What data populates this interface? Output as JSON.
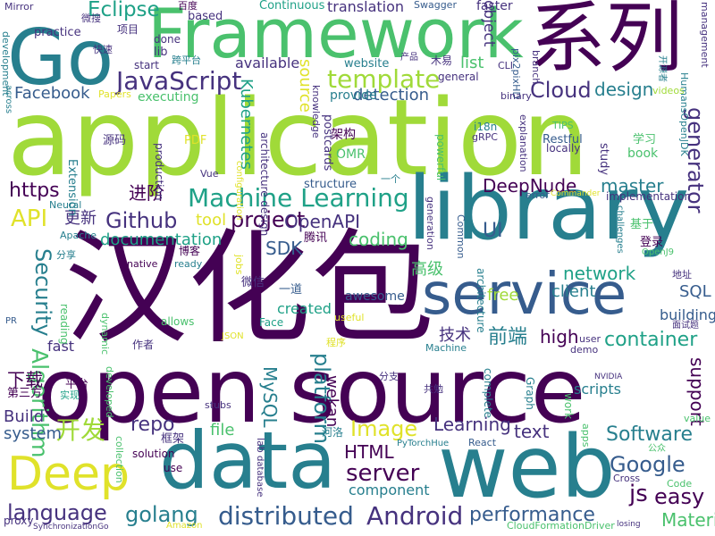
{
  "palette": {
    "purple": "#440154",
    "indigo": "#46327e",
    "blue": "#365c8d",
    "teal": "#277f8e",
    "sea": "#1fa187",
    "green": "#4ac16d",
    "lime": "#a0da39",
    "yellow": "#e0e22a"
  },
  "words": [
    {
      "text": "application",
      "color": "lime"
    },
    {
      "text": "open source",
      "color": "purple"
    },
    {
      "text": "汉化包",
      "color": "purple"
    },
    {
      "text": "library",
      "color": "teal"
    },
    {
      "text": "web",
      "color": "teal"
    },
    {
      "text": "data",
      "color": "teal"
    },
    {
      "text": "Framework",
      "color": "green"
    },
    {
      "text": "系列",
      "color": "purple"
    },
    {
      "text": "Go",
      "color": "teal"
    },
    {
      "text": "service",
      "color": "blue"
    },
    {
      "text": "Deep",
      "color": "yellow"
    },
    {
      "text": "JavaScript",
      "color": "indigo"
    },
    {
      "text": "template",
      "color": "lime"
    },
    {
      "text": "Machine Learning",
      "color": "sea"
    },
    {
      "text": "Github",
      "color": "indigo"
    },
    {
      "text": "project",
      "color": "purple"
    },
    {
      "text": "Cloud",
      "color": "indigo"
    },
    {
      "text": "Eclipse",
      "color": "sea"
    },
    {
      "text": "Algorithm",
      "color": "green"
    },
    {
      "text": "Security",
      "color": "teal"
    },
    {
      "text": "API",
      "color": "yellow"
    },
    {
      "text": "https",
      "color": "purple"
    },
    {
      "text": "Facebook",
      "color": "blue"
    },
    {
      "text": "container",
      "color": "sea"
    },
    {
      "text": "Google",
      "color": "blue"
    },
    {
      "text": "Software",
      "color": "teal"
    },
    {
      "text": "Image",
      "color": "yellow"
    },
    {
      "text": "distributed",
      "color": "blue"
    },
    {
      "text": "Android",
      "color": "indigo"
    },
    {
      "text": "performance",
      "color": "blue"
    },
    {
      "text": "language",
      "color": "indigo"
    },
    {
      "text": "golang",
      "color": "teal"
    },
    {
      "text": "server",
      "color": "purple"
    },
    {
      "text": "platform",
      "color": "teal"
    },
    {
      "text": "generator",
      "color": "indigo"
    },
    {
      "text": "Kubernetes",
      "color": "sea"
    },
    {
      "text": "开发",
      "color": "lime"
    },
    {
      "text": "easy",
      "color": "purple"
    },
    {
      "text": "js",
      "color": "purple"
    },
    {
      "text": "Material",
      "color": "green"
    },
    {
      "text": "design",
      "color": "teal"
    },
    {
      "text": "network",
      "color": "sea"
    },
    {
      "text": "前端",
      "color": "teal"
    },
    {
      "text": "高级",
      "color": "green"
    },
    {
      "text": "Learning",
      "color": "indigo"
    },
    {
      "text": "text",
      "color": "indigo"
    },
    {
      "text": "repo",
      "color": "indigo"
    },
    {
      "text": "UI",
      "color": "blue"
    },
    {
      "text": "coding",
      "color": "green"
    },
    {
      "text": "SDK",
      "color": "blue"
    },
    {
      "text": "OpenAPI",
      "color": "indigo"
    },
    {
      "text": "MySQL",
      "color": "teal"
    },
    {
      "text": "wekan",
      "color": "purple"
    },
    {
      "text": "HTML",
      "color": "purple"
    },
    {
      "text": "file",
      "color": "green"
    },
    {
      "text": "master",
      "color": "teal"
    },
    {
      "text": "DeepNude",
      "color": "purple"
    },
    {
      "text": "support",
      "color": "purple"
    },
    {
      "text": "SQL",
      "color": "blue"
    },
    {
      "text": "high",
      "color": "purple"
    },
    {
      "text": "技术",
      "color": "indigo"
    },
    {
      "text": "free",
      "color": "lime"
    },
    {
      "text": "client",
      "color": "teal"
    },
    {
      "text": "Build",
      "color": "indigo"
    },
    {
      "text": "system",
      "color": "blue"
    },
    {
      "text": "下载",
      "color": "purple"
    },
    {
      "text": "更新",
      "color": "indigo"
    },
    {
      "text": "进阶",
      "color": "purple"
    },
    {
      "text": "documentation",
      "color": "sea"
    },
    {
      "text": "tool",
      "color": "yellow"
    },
    {
      "text": "list",
      "color": "green"
    },
    {
      "text": "source",
      "color": "yellow"
    },
    {
      "text": "detection",
      "color": "blue"
    },
    {
      "text": "translation",
      "color": "indigo"
    },
    {
      "text": "Continuous",
      "color": "sea"
    },
    {
      "text": "available",
      "color": "indigo"
    },
    {
      "text": "component",
      "color": "teal"
    },
    {
      "text": "fast",
      "color": "indigo"
    },
    {
      "text": "building",
      "color": "blue"
    },
    {
      "text": "scripts",
      "color": "teal"
    },
    {
      "text": "created",
      "color": "sea"
    },
    {
      "text": "awesome",
      "color": "blue"
    },
    {
      "text": "executing",
      "color": "green"
    },
    {
      "text": "architecture",
      "color": "teal"
    },
    {
      "text": "provide",
      "color": "teal"
    },
    {
      "text": "website",
      "color": "teal"
    },
    {
      "text": "faster",
      "color": "indigo"
    },
    {
      "text": "management",
      "color": "indigo"
    },
    {
      "text": "Swagger",
      "color": "blue"
    },
    {
      "text": "Extension",
      "color": "teal"
    },
    {
      "text": "production",
      "color": "indigo"
    },
    {
      "text": "structure",
      "color": "blue"
    },
    {
      "text": "Restful",
      "color": "blue"
    },
    {
      "text": "study",
      "color": "indigo"
    },
    {
      "text": "book",
      "color": "green"
    },
    {
      "text": "OMR",
      "color": "green"
    },
    {
      "text": "postcards",
      "color": "indigo"
    },
    {
      "text": "architecture design",
      "color": "indigo"
    },
    {
      "text": "架构",
      "color": "purple"
    },
    {
      "text": "学习",
      "color": "green"
    },
    {
      "text": "源码",
      "color": "indigo"
    },
    {
      "text": "腾讯",
      "color": "purple"
    },
    {
      "text": "博客",
      "color": "purple"
    },
    {
      "text": "微信",
      "color": "indigo"
    },
    {
      "text": "一道",
      "color": "blue"
    },
    {
      "text": "作者",
      "color": "indigo"
    },
    {
      "text": "平台",
      "color": "purple"
    },
    {
      "text": "第三方",
      "color": "purple"
    },
    {
      "text": "框架",
      "color": "indigo"
    },
    {
      "text": "分享",
      "color": "teal"
    },
    {
      "text": "登录",
      "color": "purple"
    },
    {
      "text": "基于",
      "color": "green"
    },
    {
      "text": "一个",
      "color": "teal"
    },
    {
      "text": "开源者",
      "color": "teal"
    },
    {
      "text": "木易",
      "color": "indigo"
    },
    {
      "text": "项目",
      "color": "indigo"
    },
    {
      "text": "快速",
      "color": "indigo"
    },
    {
      "text": "微搜",
      "color": "indigo"
    },
    {
      "text": "百度",
      "color": "purple"
    },
    {
      "text": "跨平台",
      "color": "teal"
    },
    {
      "text": "实现",
      "color": "sea"
    },
    {
      "text": "共勉",
      "color": "indigo"
    },
    {
      "text": "分支",
      "color": "indigo"
    },
    {
      "text": "河洛",
      "color": "teal"
    },
    {
      "text": "程序",
      "color": "yellow"
    },
    {
      "text": "地址",
      "color": "indigo"
    },
    {
      "text": "面试题",
      "color": "indigo"
    },
    {
      "text": "公众",
      "color": "green"
    },
    {
      "text": "产品",
      "color": "indigo"
    },
    {
      "text": "Mirror",
      "color": "indigo"
    },
    {
      "text": "development",
      "color": "teal"
    },
    {
      "text": "across",
      "color": "teal"
    },
    {
      "text": "practice",
      "color": "indigo"
    },
    {
      "text": "start",
      "color": "indigo"
    },
    {
      "text": "lib",
      "color": "indigo"
    },
    {
      "text": "done",
      "color": "indigo"
    },
    {
      "text": "based",
      "color": "indigo"
    },
    {
      "text": "Papers",
      "color": "yellow"
    },
    {
      "text": "PDF",
      "color": "yellow"
    },
    {
      "text": "Vue",
      "color": "indigo"
    },
    {
      "text": "configuration",
      "color": "yellow"
    },
    {
      "text": "knowledge",
      "color": "indigo"
    },
    {
      "text": "Face",
      "color": "sea"
    },
    {
      "text": "allows",
      "color": "green"
    },
    {
      "text": "useful",
      "color": "yellow"
    },
    {
      "text": "dynamic",
      "color": "green"
    },
    {
      "text": "reading",
      "color": "green"
    },
    {
      "text": "native",
      "color": "purple"
    },
    {
      "text": "ready",
      "color": "teal"
    },
    {
      "text": "jobs",
      "color": "yellow"
    },
    {
      "text": "JSON",
      "color": "yellow"
    },
    {
      "text": "Apache",
      "color": "teal"
    },
    {
      "text": "Neural",
      "color": "teal"
    },
    {
      "text": "developed",
      "color": "green"
    },
    {
      "text": "collection",
      "color": "green"
    },
    {
      "text": "solution",
      "color": "purple"
    },
    {
      "text": "use",
      "color": "purple"
    },
    {
      "text": "stubs",
      "color": "indigo"
    },
    {
      "text": "database",
      "color": "indigo"
    },
    {
      "text": "lab",
      "color": "indigo"
    },
    {
      "text": "PyTorchHue",
      "color": "teal"
    },
    {
      "text": "React",
      "color": "blue"
    },
    {
      "text": "Machine",
      "color": "teal"
    },
    {
      "text": "demo",
      "color": "indigo"
    },
    {
      "text": "user",
      "color": "indigo"
    },
    {
      "text": "complete",
      "color": "teal"
    },
    {
      "text": "Graph",
      "color": "teal"
    },
    {
      "text": "work",
      "color": "green"
    },
    {
      "text": "apps",
      "color": "green"
    },
    {
      "text": "Cross",
      "color": "indigo"
    },
    {
      "text": "Code",
      "color": "green"
    },
    {
      "text": "value",
      "color": "green"
    },
    {
      "text": "NVIDIA",
      "color": "indigo"
    },
    {
      "text": "losing",
      "color": "indigo"
    },
    {
      "text": "CloudFormationDriver",
      "color": "green"
    },
    {
      "text": "Amazon",
      "color": "yellow"
    },
    {
      "text": "SynchronizationGo",
      "color": "indigo"
    },
    {
      "text": "proxy",
      "color": "indigo"
    },
    {
      "text": "PR",
      "color": "blue"
    },
    {
      "text": "OpenJ9",
      "color": "green"
    },
    {
      "text": "HumansOpenJDK",
      "color": "teal"
    },
    {
      "text": "videos",
      "color": "lime"
    },
    {
      "text": "challenges",
      "color": "teal"
    },
    {
      "text": "implementation",
      "color": "indigo"
    },
    {
      "text": "Commander",
      "color": "yellow"
    },
    {
      "text": "error",
      "color": "blue"
    },
    {
      "text": "Common",
      "color": "blue"
    },
    {
      "text": "generation",
      "color": "indigo"
    },
    {
      "text": "gRPC",
      "color": "indigo"
    },
    {
      "text": "i18n",
      "color": "teal"
    },
    {
      "text": "pix2pixHD",
      "color": "blue"
    },
    {
      "text": "binary",
      "color": "indigo"
    },
    {
      "text": "general",
      "color": "indigo"
    },
    {
      "text": "explanation",
      "color": "indigo"
    },
    {
      "text": "powerful",
      "color": "green"
    },
    {
      "text": "locally",
      "color": "indigo"
    },
    {
      "text": "TIPS",
      "color": "green"
    },
    {
      "text": "CLI",
      "color": "indigo"
    },
    {
      "text": "branch",
      "color": "indigo"
    },
    {
      "text": "object",
      "color": "indigo"
    }
  ]
}
